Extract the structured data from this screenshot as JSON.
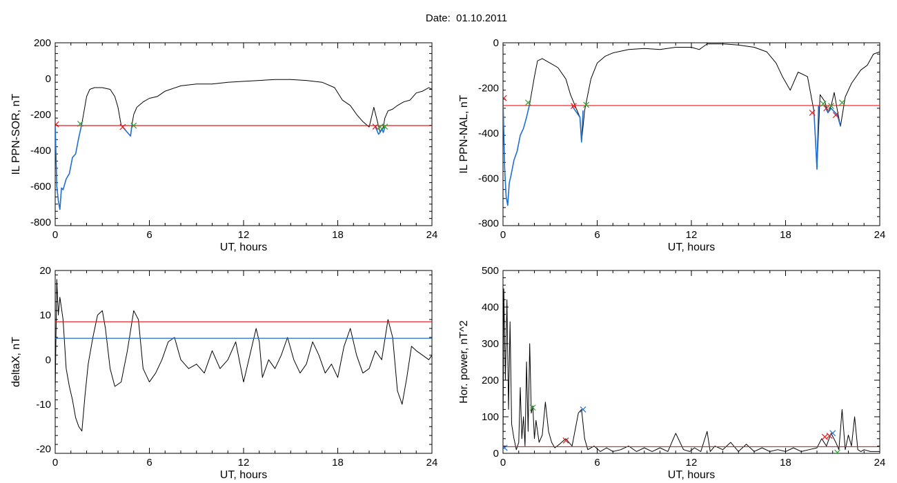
{
  "page": {
    "title": "Date:  01.10.2011"
  },
  "chart_data": [
    {
      "id": "sor",
      "type": "line",
      "xlabel": "UT, hours",
      "ylabel": "IL PPN-SOR, nT",
      "xlim": [
        0,
        24
      ],
      "ylim": [
        -820,
        200
      ],
      "xticks": [
        0,
        6,
        12,
        18,
        24
      ],
      "yticks": [
        -800,
        -600,
        -400,
        -200,
        0,
        200
      ],
      "grid": false,
      "threshold": {
        "value": -262,
        "color": "#e41a1c"
      },
      "series": [
        {
          "color": "#000000",
          "x": [
            0,
            0.1,
            0.2,
            0.3,
            0.4,
            0.5,
            0.7,
            0.9,
            1.1,
            1.3,
            1.5,
            1.7,
            2.0,
            2.2,
            2.5,
            3.0,
            3.5,
            3.8,
            4.0,
            4.2,
            4.4,
            4.6,
            4.8,
            4.9,
            5.0,
            5.2,
            5.6,
            6.0,
            6.5,
            7.0,
            8.0,
            9.0,
            10.0,
            11.0,
            12.0,
            13.0,
            14.0,
            15.0,
            16.0,
            17.0,
            17.8,
            18.3,
            18.8,
            19.2,
            19.6,
            20.0,
            20.3,
            20.5,
            20.7,
            20.9,
            21.0,
            21.2,
            21.5,
            21.8,
            22.2,
            22.6,
            23.0,
            23.4,
            23.8,
            24.0
          ],
          "y": [
            -260,
            -600,
            -680,
            -730,
            -610,
            -620,
            -560,
            -530,
            -440,
            -420,
            -330,
            -250,
            -100,
            -60,
            -50,
            -50,
            -60,
            -100,
            -160,
            -260,
            -280,
            -300,
            -320,
            -250,
            -200,
            -160,
            -130,
            -110,
            -100,
            -70,
            -40,
            -30,
            -30,
            -20,
            -15,
            -10,
            -5,
            -5,
            -10,
            -20,
            -50,
            -120,
            -150,
            -200,
            -240,
            -270,
            -160,
            -230,
            -300,
            -270,
            -220,
            -180,
            -170,
            -150,
            -130,
            -120,
            -80,
            -70,
            -50,
            -60
          ]
        },
        {
          "color": "#1f6fd1",
          "x": [
            0,
            0.1,
            0.2,
            0.3,
            0.4,
            0.5,
            0.7,
            0.9,
            1.1,
            1.3,
            1.5,
            1.7
          ],
          "y": [
            -260,
            -600,
            -680,
            -730,
            -610,
            -620,
            -560,
            -530,
            -440,
            -420,
            -330,
            -250
          ]
        },
        {
          "color": "#1f6fd1",
          "x": [
            4.3,
            4.4,
            4.6,
            4.8,
            4.9
          ],
          "y": [
            -270,
            -280,
            -300,
            -320,
            -250
          ]
        },
        {
          "color": "#1f6fd1",
          "x": [
            20.4,
            20.6,
            20.7,
            20.8,
            20.9,
            21.0
          ],
          "y": [
            -270,
            -310,
            -300,
            -280,
            -300,
            -270
          ]
        }
      ],
      "markers": [
        {
          "x": 0.05,
          "y": -255,
          "color": "#e41a1c"
        },
        {
          "x": 1.6,
          "y": -252,
          "color": "#2ca02c"
        },
        {
          "x": 4.3,
          "y": -270,
          "color": "#e41a1c"
        },
        {
          "x": 5.0,
          "y": -262,
          "color": "#2ca02c"
        },
        {
          "x": 20.4,
          "y": -268,
          "color": "#e41a1c"
        },
        {
          "x": 20.7,
          "y": -270,
          "color": "#2ca02c"
        },
        {
          "x": 21.0,
          "y": -268,
          "color": "#2ca02c"
        }
      ]
    },
    {
      "id": "nal",
      "type": "line",
      "xlabel": "UT, hours",
      "ylabel": "IL PPN-NAL, nT",
      "xlim": [
        0,
        24
      ],
      "ylim": [
        -810,
        0
      ],
      "xticks": [
        0,
        6,
        12,
        18,
        24
      ],
      "yticks": [
        -800,
        -600,
        -400,
        -200,
        0
      ],
      "grid": false,
      "threshold": {
        "value": -278,
        "color": "#e41a1c"
      },
      "series": [
        {
          "color": "#000000",
          "x": [
            0,
            0.1,
            0.2,
            0.3,
            0.4,
            0.5,
            0.7,
            0.9,
            1.1,
            1.3,
            1.5,
            1.7,
            2.0,
            2.2,
            2.5,
            3.0,
            3.5,
            4.0,
            4.3,
            4.6,
            4.9,
            5.0,
            5.2,
            5.6,
            6.0,
            6.5,
            7.0,
            8.0,
            9.0,
            10.0,
            11.0,
            12.0,
            12.5,
            13.0,
            13.5,
            14.0,
            15.0,
            16.0,
            16.8,
            17.4,
            17.8,
            18.3,
            18.8,
            19.4,
            19.8,
            20.0,
            20.2,
            20.5,
            20.7,
            20.9,
            21.1,
            21.3,
            21.5,
            21.8,
            22.2,
            22.8,
            23.2,
            23.6,
            24.0
          ],
          "y": [
            -250,
            -550,
            -680,
            -720,
            -620,
            -590,
            -520,
            -480,
            -410,
            -380,
            -330,
            -270,
            -150,
            -80,
            -70,
            -90,
            -110,
            -160,
            -230,
            -280,
            -330,
            -440,
            -300,
            -160,
            -90,
            -60,
            -45,
            -30,
            -25,
            -30,
            -20,
            -20,
            -30,
            -5,
            -5,
            -5,
            -10,
            -20,
            -40,
            -90,
            -150,
            -210,
            -130,
            -150,
            -300,
            -560,
            -230,
            -260,
            -310,
            -280,
            -220,
            -300,
            -370,
            -240,
            -180,
            -120,
            -100,
            -50,
            -40
          ]
        },
        {
          "color": "#1f6fd1",
          "x": [
            0,
            0.1,
            0.2,
            0.3,
            0.4,
            0.5,
            0.7,
            0.9,
            1.1,
            1.3,
            1.5,
            1.7
          ],
          "y": [
            -250,
            -550,
            -680,
            -720,
            -620,
            -590,
            -520,
            -480,
            -410,
            -380,
            -330,
            -270
          ]
        },
        {
          "color": "#1f6fd1",
          "x": [
            4.4,
            4.6,
            4.8,
            4.9,
            5.0,
            5.1
          ],
          "y": [
            -280,
            -300,
            -320,
            -330,
            -440,
            -300
          ]
        },
        {
          "color": "#1f6fd1",
          "x": [
            19.8,
            19.9,
            20.0,
            20.1
          ],
          "y": [
            -300,
            -420,
            -560,
            -280
          ]
        },
        {
          "color": "#1f6fd1",
          "x": [
            20.5,
            20.7,
            20.9,
            21.3,
            21.5
          ],
          "y": [
            -280,
            -310,
            -290,
            -320,
            -370
          ]
        }
      ],
      "markers": [
        {
          "x": 0.05,
          "y": -245,
          "color": "#e41a1c"
        },
        {
          "x": 1.6,
          "y": -265,
          "color": "#2ca02c"
        },
        {
          "x": 4.5,
          "y": -280,
          "color": "#e41a1c"
        },
        {
          "x": 5.3,
          "y": -275,
          "color": "#2ca02c"
        },
        {
          "x": 19.7,
          "y": -310,
          "color": "#e41a1c"
        },
        {
          "x": 20.4,
          "y": -270,
          "color": "#2ca02c"
        },
        {
          "x": 20.6,
          "y": -290,
          "color": "#e41a1c"
        },
        {
          "x": 20.9,
          "y": -280,
          "color": "#2ca02c"
        },
        {
          "x": 21.2,
          "y": -320,
          "color": "#e41a1c"
        },
        {
          "x": 21.6,
          "y": -265,
          "color": "#2ca02c"
        }
      ]
    },
    {
      "id": "deltax",
      "type": "line",
      "xlabel": "UT, hours",
      "ylabel": "deltaX, nT",
      "xlim": [
        0,
        24
      ],
      "ylim": [
        -21,
        20
      ],
      "xticks": [
        0,
        6,
        12,
        18,
        24
      ],
      "yticks": [
        -20,
        -10,
        0,
        10,
        20
      ],
      "grid": false,
      "threshold": {
        "value": 8.5,
        "color": "#e41a1c"
      },
      "threshold2": {
        "value": 4.8,
        "color": "#1f6fd1"
      },
      "series": [
        {
          "color": "#000000",
          "x": [
            0,
            0.1,
            0.2,
            0.3,
            0.5,
            0.7,
            0.9,
            1.1,
            1.3,
            1.5,
            1.7,
            1.9,
            2.1,
            2.4,
            2.7,
            3.0,
            3.2,
            3.5,
            3.8,
            4.2,
            4.6,
            5.0,
            5.3,
            5.6,
            6.0,
            6.4,
            6.8,
            7.2,
            7.6,
            8.0,
            8.5,
            9.0,
            9.5,
            10.0,
            10.5,
            11.0,
            11.5,
            12.0,
            12.4,
            12.8,
            13.0,
            13.2,
            13.6,
            14.0,
            14.4,
            14.8,
            15.2,
            15.6,
            16.0,
            16.4,
            16.8,
            17.2,
            17.6,
            18.0,
            18.4,
            18.8,
            19.2,
            19.6,
            20.0,
            20.4,
            20.8,
            21.2,
            21.5,
            21.8,
            22.1,
            22.4,
            22.7,
            23.0,
            23.4,
            23.8,
            24.0
          ],
          "y": [
            -7,
            18,
            10,
            14,
            9,
            -2,
            -6,
            -9,
            -13,
            -15,
            -16,
            -8,
            -1,
            5,
            10,
            11,
            7,
            -2,
            -6,
            -5,
            2,
            11,
            9,
            -2,
            -5,
            -3,
            0,
            4,
            5,
            0,
            -2,
            -1,
            -3,
            2,
            -2,
            0,
            4,
            -5,
            1,
            7,
            4,
            -4,
            0,
            -2,
            1,
            5,
            0,
            -3,
            -1,
            4,
            1,
            -3,
            -1,
            -4,
            3,
            7,
            1,
            -3,
            -2,
            2,
            0,
            9,
            5,
            -7,
            -10,
            -4,
            3,
            2,
            1,
            0,
            1
          ]
        }
      ],
      "markers": []
    },
    {
      "id": "power",
      "type": "line",
      "xlabel": "UT, hours",
      "ylabel": "Hor. power, nT^2",
      "xlim": [
        0,
        24
      ],
      "ylim": [
        0,
        500
      ],
      "xticks": [
        0,
        6,
        12,
        18,
        24
      ],
      "yticks": [
        0,
        100,
        200,
        300,
        400,
        500
      ],
      "grid": false,
      "threshold": {
        "value": 18,
        "color": "#e41a1c"
      },
      "series": [
        {
          "color": "#000000",
          "x": [
            0,
            0.05,
            0.15,
            0.25,
            0.35,
            0.45,
            0.55,
            0.7,
            0.85,
            1.0,
            1.1,
            1.2,
            1.3,
            1.4,
            1.5,
            1.6,
            1.7,
            1.8,
            1.9,
            2.0,
            2.1,
            2.3,
            2.5,
            2.7,
            2.9,
            3.1,
            3.3,
            3.6,
            4.0,
            4.4,
            4.8,
            5.0,
            5.2,
            5.4,
            5.8,
            6.2,
            6.6,
            7.0,
            7.5,
            8.0,
            8.5,
            9.0,
            9.5,
            10.0,
            10.5,
            11.0,
            11.5,
            11.9,
            12.2,
            12.6,
            13.0,
            13.2,
            13.5,
            14.0,
            14.5,
            15.0,
            15.5,
            16.0,
            16.5,
            17.0,
            17.5,
            18.0,
            18.5,
            19.0,
            19.5,
            20.0,
            20.3,
            20.6,
            20.9,
            21.2,
            21.4,
            21.6,
            21.8,
            22.0,
            22.2,
            22.4,
            22.6,
            22.8,
            23.0,
            23.4,
            23.8,
            24.0
          ],
          "y": [
            30,
            450,
            200,
            420,
            120,
            360,
            80,
            40,
            10,
            30,
            180,
            40,
            100,
            20,
            250,
            60,
            300,
            110,
            130,
            40,
            90,
            30,
            50,
            140,
            60,
            30,
            15,
            25,
            40,
            20,
            110,
            120,
            40,
            10,
            20,
            5,
            15,
            5,
            10,
            20,
            5,
            15,
            5,
            15,
            5,
            55,
            10,
            5,
            15,
            5,
            60,
            5,
            20,
            10,
            30,
            5,
            25,
            5,
            15,
            5,
            10,
            5,
            15,
            5,
            10,
            15,
            40,
            20,
            55,
            30,
            10,
            120,
            10,
            50,
            20,
            100,
            10,
            5,
            10,
            5,
            5,
            5
          ]
        }
      ],
      "markers": [
        {
          "x": 0.1,
          "y": 15,
          "color": "#1f6fd1"
        },
        {
          "x": 1.9,
          "y": 125,
          "color": "#2ca02c"
        },
        {
          "x": 4.0,
          "y": 35,
          "color": "#e41a1c"
        },
        {
          "x": 5.1,
          "y": 120,
          "color": "#1f6fd1"
        },
        {
          "x": 20.5,
          "y": 45,
          "color": "#e41a1c"
        },
        {
          "x": 20.8,
          "y": 48,
          "color": "#e41a1c"
        },
        {
          "x": 21.0,
          "y": 55,
          "color": "#1f6fd1"
        },
        {
          "x": 21.3,
          "y": 2,
          "color": "#2ca02c"
        }
      ]
    }
  ]
}
